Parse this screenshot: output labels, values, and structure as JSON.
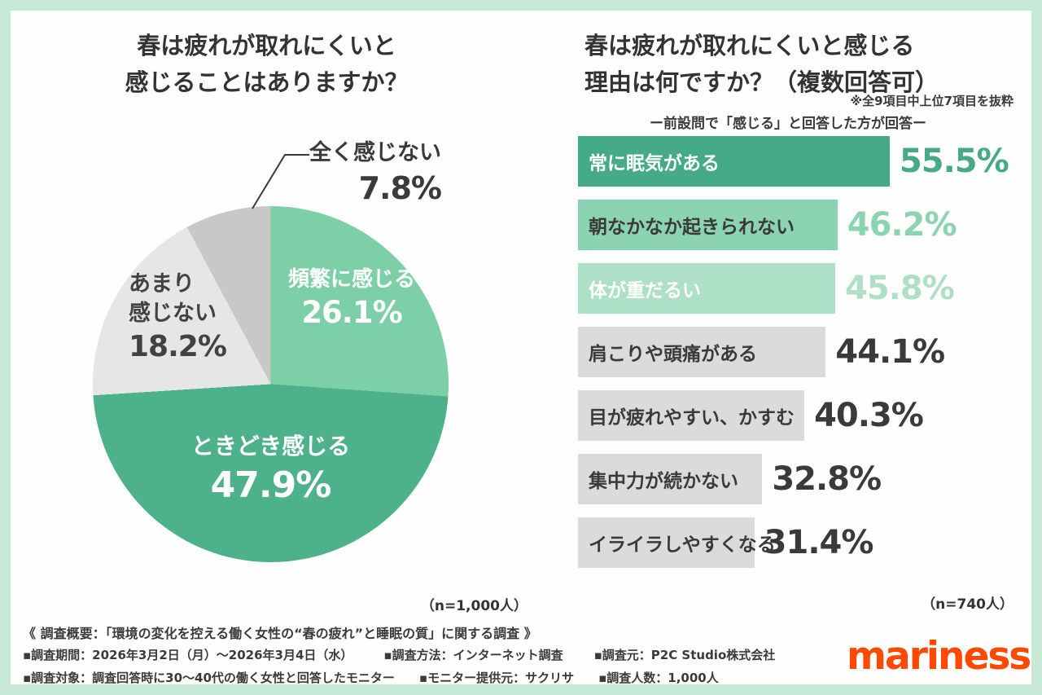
{
  "accent_colors": {
    "frame": "#c7e8d6",
    "logo": "#ff4800",
    "text": "#3a3a3a"
  },
  "chart_data": [
    {
      "type": "pie",
      "title": "春は疲れが取れにくいと感じることはありますか？",
      "title_lines": [
        "春は疲れが取れにくいと",
        "感じることはありますか？"
      ],
      "n_label": "（n=1,000人）",
      "legend_position": "none",
      "slices": [
        {
          "label": "頻繁に感じる",
          "value": 26.1,
          "value_label": "26.1%",
          "color": "#7ccfa7"
        },
        {
          "label": "ときどき感じる",
          "value": 47.9,
          "value_label": "47.9%",
          "color": "#4db18c"
        },
        {
          "label": "あまり感じない",
          "label_lines": [
            "あまり",
            "感じない"
          ],
          "value": 18.2,
          "value_label": "18.2%",
          "color": "#e6e6e6"
        },
        {
          "label": "全く感じない",
          "value": 7.8,
          "value_label": "7.8%",
          "color": "#c8c8c8"
        }
      ]
    },
    {
      "type": "bar",
      "title": "春は疲れが取れにくいと感じる理由は何ですか？（複数回答可）",
      "title_lines": [
        "春は疲れが取れにくいと感じる",
        "理由は何ですか？（複数回答可）"
      ],
      "note": "※全9項目中上位7項目を抜粋",
      "subtitle": "ー前設問で「感じる」と回答した方が回答ー",
      "n_label": "（n=740人）",
      "xlim": [
        0,
        60
      ],
      "orientation": "horizontal",
      "bars": [
        {
          "label": "常に眠気がある",
          "value": 55.5,
          "value_label": "55.5%",
          "bar_color": "#44ab86",
          "label_color": "#ffffff",
          "pct_color": "#44ab86"
        },
        {
          "label": "朝なかなか起きられない",
          "value": 46.2,
          "value_label": "46.2%",
          "bar_color": "#8bd3b1",
          "label_color": "#3a3a3a",
          "pct_color": "#8bd3b1"
        },
        {
          "label": "体が重だるい",
          "value": 45.8,
          "value_label": "45.8%",
          "bar_color": "#aedfc7",
          "label_color": "#ffffff",
          "pct_color": "#aedfc7"
        },
        {
          "label": "肩こりや頭痛がある",
          "value": 44.1,
          "value_label": "44.1%",
          "bar_color": "#dbdbdb",
          "label_color": "#3a3a3a",
          "pct_color": "#3a3a3a"
        },
        {
          "label": "目が疲れやすい、かすむ",
          "value": 40.3,
          "value_label": "40.3%",
          "bar_color": "#dbdbdb",
          "label_color": "#3a3a3a",
          "pct_color": "#3a3a3a"
        },
        {
          "label": "集中力が続かない",
          "value": 32.8,
          "value_label": "32.8%",
          "bar_color": "#dbdbdb",
          "label_color": "#3a3a3a",
          "pct_color": "#3a3a3a"
        },
        {
          "label": "イライラしやすくなる",
          "value": 31.4,
          "value_label": "31.4%",
          "bar_color": "#dbdbdb",
          "label_color": "#3a3a3a",
          "pct_color": "#3a3a3a"
        }
      ]
    }
  ],
  "footer": {
    "marker": "▪",
    "overview": "《 調査概要：「環境の変化を控える働く女性の“春の疲れ”と睡眠の質」に関する調査 》",
    "row1": [
      "調査期間：2026年3月2日（月）〜2026年3月4日（水）",
      "調査方法：インターネット調査",
      "調査元：P2C Studio株式会社"
    ],
    "row2": [
      "調査対象：調査回答時に30〜40代の働く女性と回答したモニター",
      "モニター提供元：サクリサ",
      "調査人数：1,000人"
    ]
  },
  "logo": {
    "text": "mariness"
  }
}
